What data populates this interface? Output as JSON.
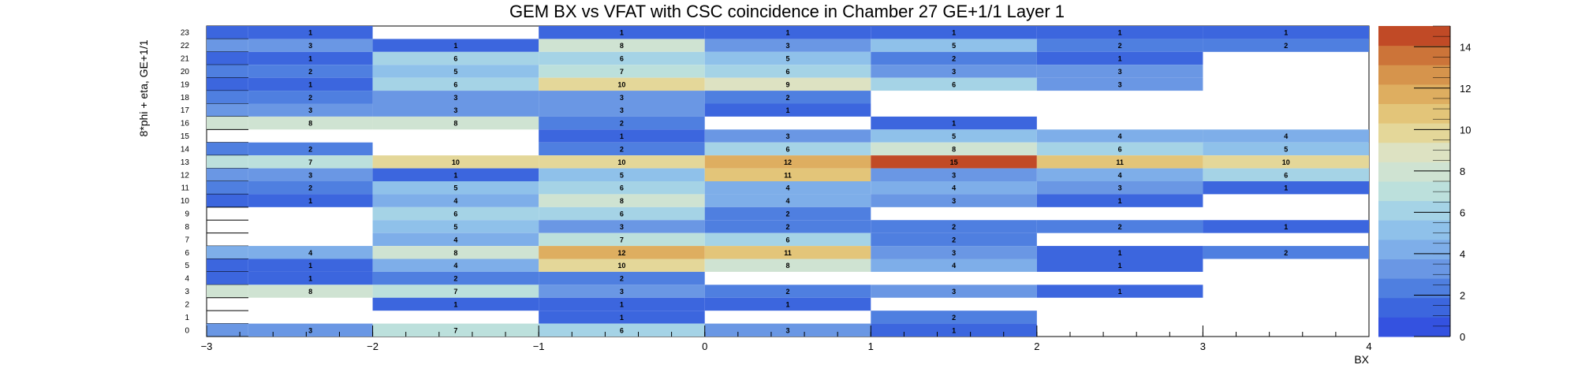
{
  "chart_data": {
    "type": "heatmap",
    "title": "GEM BX vs VFAT with CSC coincidence in Chamber 27 GE+1/1 Layer 1",
    "xlabel": "BX",
    "ylabel": "8*phi + eta, GE+1/1",
    "x_edges": [
      -3,
      -2.75,
      -2,
      -1,
      0,
      1,
      2,
      3,
      4
    ],
    "xlim": [
      -3,
      4
    ],
    "ylim": [
      0,
      24
    ],
    "x_ticks": [
      -3,
      -2,
      -1,
      0,
      1,
      2,
      3,
      4
    ],
    "x_tick_labels": [
      "−3",
      "−2",
      "−1",
      "0",
      "1",
      "2",
      "3",
      "4"
    ],
    "y_tick_labels": [
      "0",
      "1",
      "2",
      "3",
      "4",
      "5",
      "6",
      "7",
      "8",
      "9",
      "10",
      "11",
      "12",
      "13",
      "14",
      "15",
      "16",
      "17",
      "18",
      "19",
      "20",
      "21",
      "22",
      "23"
    ],
    "zlim": [
      0,
      15
    ],
    "colorbar_ticks": [
      0,
      2,
      4,
      6,
      8,
      10,
      12,
      14
    ],
    "grid": false,
    "rows": [
      {
        "y": 23,
        "values": [
          1,
          1,
          null,
          1,
          1,
          1,
          1,
          1
        ]
      },
      {
        "y": 22,
        "values": [
          3,
          3,
          1,
          8,
          3,
          5,
          2,
          2
        ]
      },
      {
        "y": 21,
        "values": [
          1,
          1,
          6,
          6,
          5,
          2,
          1,
          null
        ]
      },
      {
        "y": 20,
        "values": [
          2,
          2,
          5,
          7,
          6,
          3,
          3,
          null
        ]
      },
      {
        "y": 19,
        "values": [
          1,
          1,
          6,
          10,
          9,
          6,
          3,
          null
        ]
      },
      {
        "y": 18,
        "values": [
          2,
          2,
          3,
          3,
          2,
          null,
          null,
          null
        ]
      },
      {
        "y": 17,
        "values": [
          3,
          3,
          3,
          3,
          1,
          null,
          null,
          null
        ]
      },
      {
        "y": 16,
        "values": [
          8,
          8,
          8,
          2,
          null,
          1,
          null,
          null
        ]
      },
      {
        "y": 15,
        "values": [
          null,
          null,
          null,
          1,
          3,
          5,
          4,
          4
        ]
      },
      {
        "y": 14,
        "values": [
          2,
          2,
          null,
          2,
          6,
          8,
          6,
          5
        ]
      },
      {
        "y": 13,
        "values": [
          7,
          7,
          10,
          10,
          12,
          15,
          11,
          10
        ]
      },
      {
        "y": 12,
        "values": [
          3,
          3,
          1,
          5,
          11,
          3,
          4,
          6
        ]
      },
      {
        "y": 11,
        "values": [
          2,
          2,
          5,
          6,
          4,
          4,
          3,
          1
        ]
      },
      {
        "y": 10,
        "values": [
          1,
          1,
          4,
          8,
          4,
          3,
          1,
          null
        ]
      },
      {
        "y": 9,
        "values": [
          null,
          null,
          6,
          6,
          2,
          null,
          null,
          null
        ]
      },
      {
        "y": 8,
        "values": [
          null,
          null,
          5,
          3,
          2,
          2,
          2,
          1
        ]
      },
      {
        "y": 7,
        "values": [
          null,
          null,
          4,
          7,
          6,
          2,
          null,
          null
        ]
      },
      {
        "y": 6,
        "values": [
          4,
          4,
          8,
          12,
          11,
          3,
          1,
          2
        ]
      },
      {
        "y": 5,
        "values": [
          1,
          1,
          4,
          10,
          8,
          4,
          1,
          null
        ]
      },
      {
        "y": 4,
        "values": [
          1,
          1,
          2,
          2,
          null,
          null,
          null,
          null
        ]
      },
      {
        "y": 3,
        "values": [
          8,
          8,
          7,
          3,
          2,
          3,
          1,
          null
        ]
      },
      {
        "y": 2,
        "values": [
          null,
          null,
          1,
          1,
          1,
          null,
          null,
          null
        ]
      },
      {
        "y": 1,
        "values": [
          null,
          null,
          null,
          1,
          null,
          2,
          null,
          null
        ]
      },
      {
        "y": 0,
        "values": [
          3,
          3,
          7,
          6,
          3,
          1,
          null,
          null
        ]
      }
    ],
    "palette": [
      "#3452e0",
      "#3c66de",
      "#4f7fe0",
      "#6a97e4",
      "#7eaee9",
      "#8fc1ea",
      "#a5d3e6",
      "#bce0dc",
      "#cfe3d2",
      "#dde2c2",
      "#e4d799",
      "#e3c579",
      "#deae60",
      "#d6944c",
      "#cc7439",
      "#c14a26"
    ]
  }
}
